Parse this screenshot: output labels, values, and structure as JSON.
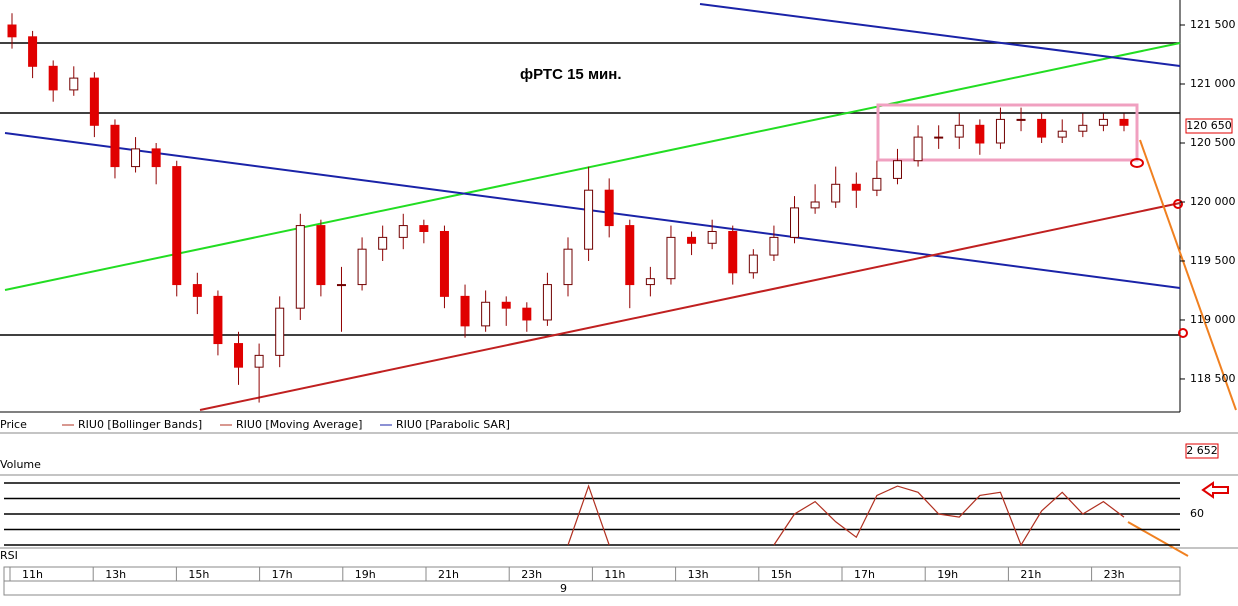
{
  "chart_data": {
    "type": "candlestick",
    "title": "фРТС   15 мин.",
    "open": [
      121500,
      121400,
      121150,
      120950,
      121050,
      120650,
      120300,
      120450,
      120300,
      119300,
      119200,
      118800,
      118600,
      118700,
      119100,
      119800,
      119300,
      119300,
      119600,
      119700,
      119800,
      119750,
      119200,
      118950,
      119150,
      119100,
      119000,
      119300,
      119600,
      120100,
      119800,
      119300,
      119350,
      119700,
      119650,
      119750,
      119400,
      119550,
      119700,
      119950,
      120000,
      120150,
      120100,
      120200,
      120350,
      120550,
      120550,
      120650,
      120500,
      120700,
      120700,
      120550,
      120600,
      120650,
      120700
    ],
    "high": [
      121600,
      121450,
      121200,
      121150,
      121100,
      120700,
      120550,
      120500,
      120350,
      119400,
      119250,
      118900,
      118800,
      119200,
      119900,
      119850,
      119450,
      119700,
      119800,
      119900,
      119850,
      119800,
      119300,
      119250,
      119200,
      119150,
      119400,
      119700,
      120300,
      120200,
      119850,
      119450,
      119800,
      119750,
      119850,
      119800,
      119600,
      119800,
      120050,
      120150,
      120300,
      120250,
      120350,
      120450,
      120650,
      120650,
      120750,
      120700,
      120800,
      120800,
      120750,
      120700,
      120750,
      120750,
      120750
    ],
    "low": [
      121300,
      121050,
      120850,
      120900,
      120550,
      120200,
      120250,
      120150,
      119200,
      119050,
      118700,
      118450,
      118300,
      118600,
      119000,
      119200,
      118900,
      119250,
      119500,
      119600,
      119650,
      119100,
      118850,
      118900,
      118950,
      118900,
      118950,
      119200,
      119500,
      119700,
      119100,
      119200,
      119300,
      119550,
      119600,
      119300,
      119350,
      119500,
      119650,
      119900,
      119950,
      119950,
      120050,
      120150,
      120300,
      120450,
      120450,
      120400,
      120450,
      120600,
      120500,
      120500,
      120550,
      120600,
      120600
    ],
    "close": [
      121400,
      121150,
      120950,
      121050,
      120650,
      120300,
      120450,
      120300,
      119300,
      119200,
      118800,
      118600,
      118700,
      119100,
      119800,
      119300,
      119300,
      119600,
      119700,
      119800,
      119750,
      119200,
      118950,
      119150,
      119100,
      119000,
      119300,
      119600,
      120100,
      119800,
      119300,
      119350,
      119700,
      119650,
      119750,
      119400,
      119550,
      119700,
      119950,
      120000,
      120150,
      120100,
      120200,
      120350,
      120550,
      120550,
      120650,
      120500,
      120700,
      120700,
      120550,
      120600,
      120650,
      120700,
      120650
    ],
    "up_color": "#ffffff",
    "down_color": "#e00000",
    "ylim": [
      118220,
      121712
    ],
    "yticks": [
      {
        "value": 121500,
        "label": "121 500"
      },
      {
        "value": 121000,
        "label": "121 000"
      },
      {
        "value": 120500,
        "label": "120 500"
      },
      {
        "value": 120000,
        "label": "120 000"
      },
      {
        "value": 119500,
        "label": "119 500"
      },
      {
        "value": 119000,
        "label": "119 000"
      },
      {
        "value": 118500,
        "label": "118 500"
      }
    ],
    "last_price": {
      "value": 120650,
      "label": "120 650"
    },
    "legend": [
      "Price",
      "RIU0 [Bollinger Bands]",
      "RIU0 [Moving Average]",
      "RIU0 [Parabolic SAR]"
    ],
    "volume": {
      "label": "Volume",
      "last": "2 652"
    },
    "rsi": {
      "label": "RSI",
      "color": "#b03020",
      "ylim": [
        40,
        80
      ],
      "yticks": [
        60
      ],
      "levels": [
        40,
        50,
        60,
        70,
        80
      ],
      "values": [
        null,
        null,
        null,
        null,
        null,
        null,
        null,
        null,
        null,
        null,
        null,
        null,
        null,
        null,
        null,
        null,
        null,
        null,
        null,
        null,
        null,
        null,
        null,
        null,
        null,
        null,
        null,
        40,
        78,
        40,
        null,
        null,
        null,
        null,
        null,
        null,
        null,
        40,
        60,
        68,
        55,
        45,
        72,
        78,
        74,
        60,
        58,
        72,
        74,
        40,
        62,
        74,
        60,
        68,
        58
      ]
    },
    "time_labels": [
      "11h",
      "13h",
      "15h",
      "17h",
      "19h",
      "21h",
      "23h",
      "11h",
      "13h",
      "15h",
      "17h",
      "19h",
      "21h",
      "23h"
    ],
    "day_label": "9"
  }
}
